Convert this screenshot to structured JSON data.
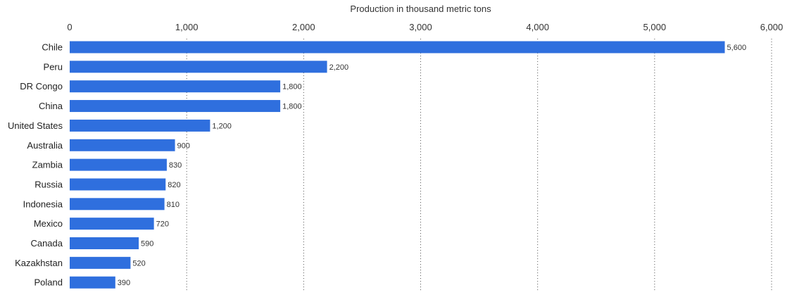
{
  "chart_data": {
    "type": "bar",
    "orientation": "horizontal",
    "title": "",
    "xlabel": "Production in thousand metric tons",
    "ylabel": "",
    "xlim": [
      0,
      6000
    ],
    "ticks": [
      0,
      1000,
      2000,
      3000,
      4000,
      5000,
      6000
    ],
    "tick_labels": [
      "0",
      "1,000",
      "2,000",
      "3,000",
      "4,000",
      "5,000",
      "6,000"
    ],
    "categories": [
      "Chile",
      "Peru",
      "DR Congo",
      "China",
      "United States",
      "Australia",
      "Zambia",
      "Russia",
      "Indonesia",
      "Mexico",
      "Canada",
      "Kazakhstan",
      "Poland"
    ],
    "values": [
      5600,
      2200,
      1800,
      1800,
      1200,
      900,
      830,
      820,
      810,
      720,
      590,
      520,
      390
    ],
    "value_labels": [
      "5,600",
      "2,200",
      "1,800",
      "1,800",
      "1,200",
      "900",
      "830",
      "820",
      "810",
      "720",
      "590",
      "520",
      "390"
    ],
    "grid": true,
    "legend": "none",
    "bar_color": "#2f6fde"
  }
}
